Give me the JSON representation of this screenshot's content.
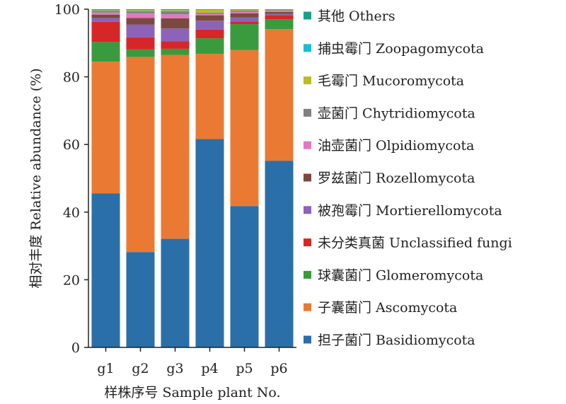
{
  "chart_data": {
    "type": "bar",
    "stacked": true,
    "xlabel": "样株序号 Sample plant No.",
    "ylabel": "相对丰度 Relative abundance (%)",
    "ylim": [
      0,
      100
    ],
    "yticks": [
      0,
      20,
      40,
      60,
      80,
      100
    ],
    "grid": false,
    "legend_position": "right",
    "categories": [
      "g1",
      "g2",
      "g3",
      "p4",
      "p5",
      "p6"
    ],
    "series": [
      {
        "name": "担子菌门 Basidiomycota",
        "color": "#2a6fa8",
        "values": [
          45.5,
          28.2,
          32.1,
          61.6,
          41.8,
          55.2
        ]
      },
      {
        "name": "子囊菌门 Ascomycota",
        "color": "#ea7a33",
        "values": [
          39.0,
          57.7,
          54.4,
          25.2,
          46.1,
          38.9
        ]
      },
      {
        "name": "球囊菌门 Glomeromycota",
        "color": "#3a9a3e",
        "values": [
          5.8,
          2.2,
          1.8,
          4.6,
          7.7,
          2.9
        ]
      },
      {
        "name": "未分类真菌 Unclassified fungi",
        "color": "#d62728",
        "values": [
          6.0,
          3.6,
          2.2,
          2.6,
          0.8,
          1.2
        ]
      },
      {
        "name": "被孢霉门 Mortierellomycota",
        "color": "#8c63b8",
        "values": [
          1.1,
          3.8,
          3.8,
          2.6,
          1.2,
          0.4
        ]
      },
      {
        "name": "罗兹菌门 Rozellomycota",
        "color": "#7b4a3f",
        "values": [
          1.0,
          1.9,
          3.0,
          1.6,
          1.2,
          0.6
        ]
      },
      {
        "name": "油壶菌门 Olpidiomycota",
        "color": "#e377c2",
        "values": [
          0.6,
          1.4,
          1.2,
          0.4,
          0.4,
          0.3
        ]
      },
      {
        "name": "壶菌门 Chytridiomycota",
        "color": "#808080",
        "values": [
          0.5,
          0.6,
          0.9,
          0.4,
          0.4,
          0.2
        ]
      },
      {
        "name": "毛霉门 Mucoromycota",
        "color": "#bcbd22",
        "values": [
          0.2,
          0.3,
          0.3,
          0.8,
          0.2,
          0.1
        ]
      },
      {
        "name": "捕虫霉门 Zoopagomycota",
        "color": "#17becf",
        "values": [
          0.1,
          0.1,
          0.1,
          0.1,
          0.1,
          0.1
        ]
      },
      {
        "name": "其他 Others",
        "color": "#1a9f8a",
        "values": [
          0.2,
          0.2,
          0.2,
          0.1,
          0.1,
          0.1
        ]
      }
    ]
  }
}
